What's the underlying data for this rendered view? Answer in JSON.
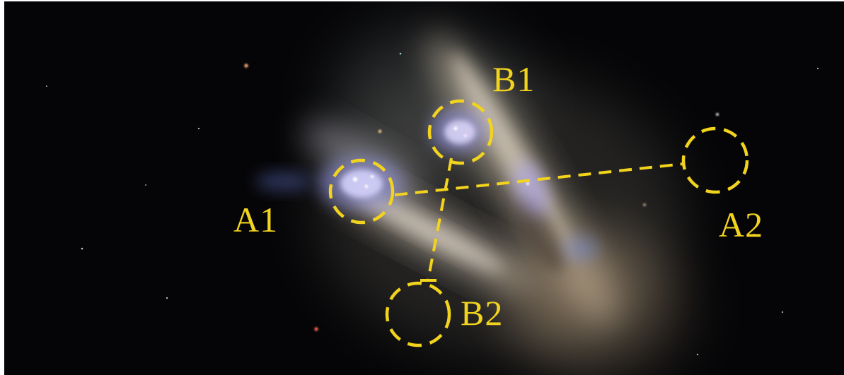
{
  "colors": {
    "annotation": "#f2d31e",
    "background": "#050507",
    "galaxy_glow": "#f1e4cf",
    "star_forming_region": "#b7b5ff"
  },
  "labels": {
    "a1": "A1",
    "a2": "A2",
    "b1": "B1",
    "b2": "B2"
  },
  "markers": {
    "a1": "dashed-circle",
    "a2": "dashed-circle",
    "b1": "dashed-circle",
    "b2": "dashed-circle"
  }
}
